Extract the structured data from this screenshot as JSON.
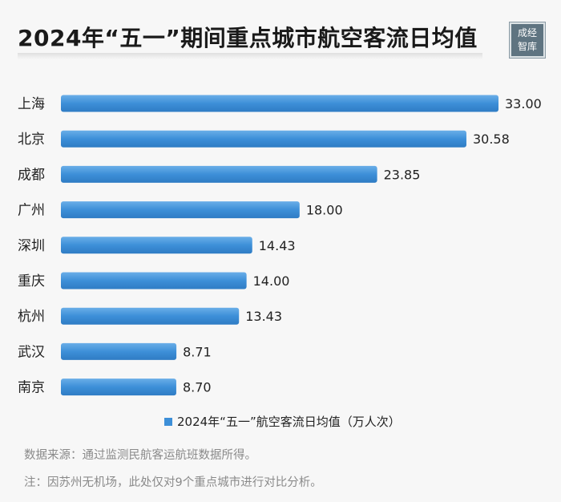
{
  "title": "2024年“五一”期间重点城市航空客流日均值",
  "logo": {
    "line1": "成经",
    "line2": "智库"
  },
  "chart_data": {
    "type": "bar",
    "orientation": "horizontal",
    "categories": [
      "上海",
      "北京",
      "成都",
      "广州",
      "深圳",
      "重庆",
      "杭州",
      "武汉",
      "南京"
    ],
    "series": [
      {
        "name": "2024年“五一”航空客流日均值（万人次）",
        "values": [
          33.0,
          30.58,
          23.85,
          18.0,
          14.43,
          14.0,
          13.43,
          8.71,
          8.7
        ]
      }
    ],
    "value_labels": [
      "33.00",
      "30.58",
      "23.85",
      "18.00",
      "14.43",
      "14.00",
      "13.43",
      "8.71",
      "8.70"
    ],
    "xlim": [
      0,
      33
    ],
    "bar_color": "#3d8fd8",
    "legend_position": "bottom"
  },
  "legend_label": "2024年“五一”航空客流日均值（万人次）",
  "notes": {
    "source": "数据来源：通过监测民航客运航班数据所得。",
    "remark": "注：因苏州无机场，此处仅对9个重点城市进行对比分析。"
  }
}
